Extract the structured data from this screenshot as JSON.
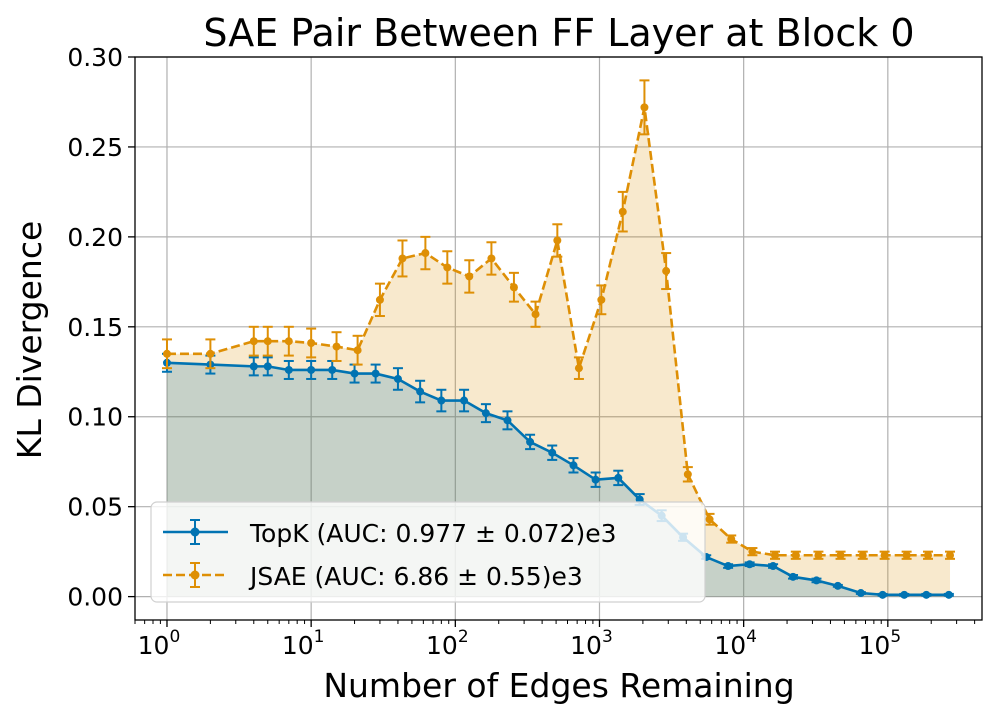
{
  "chart_data": {
    "type": "line",
    "title": "SAE Pair Between FF Layer at Block 0",
    "xlabel": "Number of Edges Remaining",
    "ylabel": "KL Divergence",
    "xscale": "log",
    "xlim": [
      0.6,
      450000
    ],
    "ylim": [
      -0.013,
      0.3
    ],
    "grid": true,
    "legend_position": "lower-left",
    "x_ticks": [
      {
        "base": "10",
        "exp": "0",
        "value": 1
      },
      {
        "base": "10",
        "exp": "1",
        "value": 10
      },
      {
        "base": "10",
        "exp": "2",
        "value": 100
      },
      {
        "base": "10",
        "exp": "3",
        "value": 1000
      },
      {
        "base": "10",
        "exp": "4",
        "value": 10000
      },
      {
        "base": "10",
        "exp": "5",
        "value": 100000
      }
    ],
    "y_ticks": [
      "0.00",
      "0.05",
      "0.10",
      "0.15",
      "0.20",
      "0.25",
      "0.30"
    ],
    "series": [
      {
        "name": "TopK (AUC: 0.977 ± 0.072)e3",
        "color": "#0173b2",
        "dash": "solid",
        "x": [
          1,
          2,
          4,
          5,
          7,
          10,
          14,
          20,
          28,
          40,
          57,
          80,
          115,
          163,
          230,
          330,
          470,
          660,
          940,
          1350,
          1900,
          2700,
          3800,
          5500,
          7800,
          11000,
          16000,
          22000,
          32000,
          45000,
          65000,
          92000,
          130000,
          185000,
          265000
        ],
        "y": [
          0.13,
          0.129,
          0.128,
          0.128,
          0.126,
          0.126,
          0.126,
          0.124,
          0.124,
          0.121,
          0.114,
          0.109,
          0.109,
          0.102,
          0.098,
          0.086,
          0.08,
          0.073,
          0.065,
          0.066,
          0.054,
          0.045,
          0.033,
          0.022,
          0.017,
          0.018,
          0.017,
          0.011,
          0.009,
          0.006,
          0.002,
          0.001,
          0.001,
          0.001,
          0.001
        ],
        "err": [
          0.005,
          0.005,
          0.005,
          0.005,
          0.005,
          0.005,
          0.005,
          0.005,
          0.005,
          0.006,
          0.006,
          0.006,
          0.006,
          0.005,
          0.005,
          0.004,
          0.004,
          0.004,
          0.004,
          0.004,
          0.003,
          0.003,
          0.002,
          0.001,
          0.001,
          0.001,
          0.001,
          0.001,
          0.001,
          0.0005,
          0.0005,
          0.0005,
          0.0005,
          0.0005,
          0.0005
        ]
      },
      {
        "name": "JSAE (AUC: 6.86 ± 0.55)e3",
        "color": "#de8f05",
        "dash": "dashed",
        "x": [
          1,
          2,
          4,
          5,
          7,
          10,
          15,
          21,
          30,
          43,
          62,
          88,
          125,
          178,
          255,
          360,
          510,
          720,
          1030,
          1450,
          2050,
          2900,
          4100,
          5800,
          8200,
          11500,
          16500,
          23000,
          33000,
          47000,
          67000,
          95000,
          135000,
          190000,
          270000
        ],
        "y": [
          0.135,
          0.135,
          0.142,
          0.142,
          0.142,
          0.141,
          0.139,
          0.137,
          0.165,
          0.188,
          0.191,
          0.183,
          0.178,
          0.188,
          0.172,
          0.157,
          0.198,
          0.127,
          0.165,
          0.214,
          0.272,
          0.181,
          0.068,
          0.043,
          0.032,
          0.025,
          0.023,
          0.023,
          0.023,
          0.023,
          0.023,
          0.023,
          0.023,
          0.023,
          0.023
        ],
        "err": [
          0.008,
          0.008,
          0.008,
          0.008,
          0.008,
          0.008,
          0.008,
          0.008,
          0.009,
          0.01,
          0.009,
          0.009,
          0.009,
          0.009,
          0.008,
          0.007,
          0.009,
          0.006,
          0.008,
          0.011,
          0.015,
          0.01,
          0.004,
          0.003,
          0.002,
          0.002,
          0.002,
          0.002,
          0.002,
          0.002,
          0.002,
          0.002,
          0.002,
          0.002,
          0.002
        ]
      }
    ]
  }
}
